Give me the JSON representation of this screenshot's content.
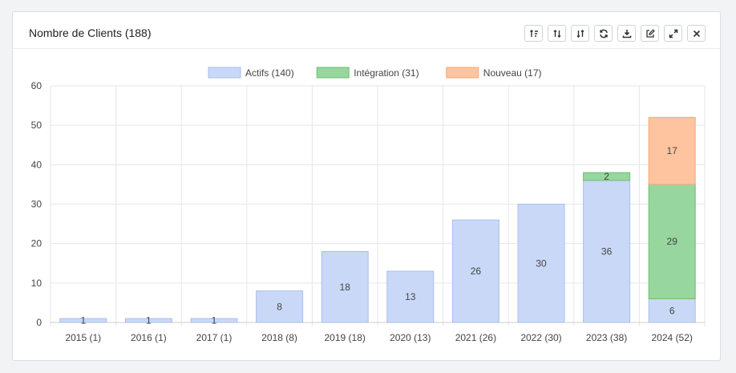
{
  "panel": {
    "title": "Nombre de Clients (188)",
    "toolbar": [
      {
        "name": "sort-asc-button",
        "icon": "sort-amount-up-icon"
      },
      {
        "name": "sort-default-button",
        "icon": "sort-icon"
      },
      {
        "name": "sort-desc-button",
        "icon": "sort-amount-down-icon"
      },
      {
        "name": "refresh-button",
        "icon": "refresh-icon"
      },
      {
        "name": "download-button",
        "icon": "download-icon"
      },
      {
        "name": "edit-button",
        "icon": "edit-icon"
      },
      {
        "name": "expand-button",
        "icon": "expand-icon"
      },
      {
        "name": "close-button",
        "icon": "close-icon"
      }
    ]
  },
  "chart_data": {
    "type": "bar",
    "stacked": true,
    "categories": [
      "2015 (1)",
      "2016 (1)",
      "2017 (1)",
      "2018 (8)",
      "2019 (18)",
      "2020 (13)",
      "2021 (26)",
      "2022 (30)",
      "2023 (38)",
      "2024 (52)"
    ],
    "series": [
      {
        "name": "Actifs (140)",
        "values": [
          1,
          1,
          1,
          8,
          18,
          13,
          26,
          30,
          36,
          6
        ],
        "color": "#c9d8f7",
        "border": "#a9bff0"
      },
      {
        "name": "Intégration (31)",
        "values": [
          0,
          0,
          0,
          0,
          0,
          0,
          0,
          0,
          2,
          29
        ],
        "color": "#98d69f",
        "border": "#6cbf74"
      },
      {
        "name": "Nouveau (17)",
        "values": [
          0,
          0,
          0,
          0,
          0,
          0,
          0,
          0,
          0,
          17
        ],
        "color": "#fec49f",
        "border": "#f5a878"
      }
    ],
    "ylim": [
      0,
      60
    ],
    "yticks": [
      0,
      10,
      20,
      30,
      40,
      50,
      60
    ],
    "grid": true,
    "legend": "top-center"
  }
}
